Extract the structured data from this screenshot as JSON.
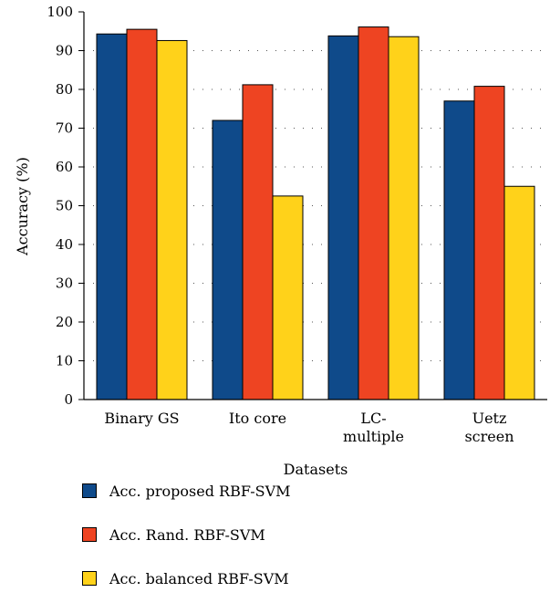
{
  "chart_data": {
    "type": "bar",
    "categories": [
      [
        "Binary GS"
      ],
      [
        "Ito core"
      ],
      [
        "LC-",
        "multiple"
      ],
      [
        "Uetz",
        "screen"
      ]
    ],
    "series": [
      {
        "name": "Acc. proposed RBF-SVM",
        "color": "#0f4a8a",
        "values": [
          94.3,
          72.0,
          93.8,
          77.0
        ]
      },
      {
        "name": "Acc. Rand. RBF-SVM",
        "color": "#ee4422",
        "values": [
          95.5,
          81.2,
          96.1,
          80.8
        ]
      },
      {
        "name": "Acc. balanced RBF-SVM",
        "color": "#ffd21a",
        "values": [
          92.6,
          52.5,
          93.6,
          55.0
        ]
      }
    ],
    "xlabel": "Datasets",
    "ylabel": "Accuracy (%)",
    "ylim": [
      0,
      100
    ],
    "yticks": [
      0,
      10,
      20,
      30,
      40,
      50,
      60,
      70,
      80,
      90,
      100
    ],
    "grid": "dotted horizontal",
    "legend_position": "bottom"
  }
}
